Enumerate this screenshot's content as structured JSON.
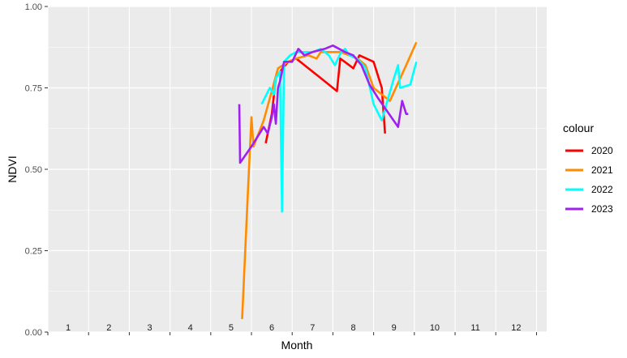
{
  "chart_data": {
    "type": "line",
    "xlabel": "Month",
    "ylabel": "NDVI",
    "xlim": [
      0.5,
      12.75
    ],
    "ylim": [
      0,
      1
    ],
    "y_ticks": [
      "0.00",
      "0.25",
      "0.50",
      "0.75",
      "1.00"
    ],
    "month_labels": [
      "1",
      "2",
      "3",
      "4",
      "5",
      "6",
      "7",
      "8",
      "9",
      "10",
      "11",
      "12"
    ],
    "grid": true,
    "legend_title": "colour",
    "legend_position": "right",
    "series": [
      {
        "name": "2020",
        "color": "#FF0000",
        "points": [
          [
            5.85,
            0.58
          ],
          [
            6.0,
            0.67
          ],
          [
            6.1,
            0.78
          ],
          [
            6.2,
            0.8
          ],
          [
            6.4,
            0.83
          ],
          [
            6.6,
            0.84
          ],
          [
            6.8,
            0.82
          ],
          [
            7.2,
            0.78
          ],
          [
            7.6,
            0.74
          ],
          [
            7.68,
            0.84
          ],
          [
            7.9,
            0.82
          ],
          [
            8.0,
            0.81
          ],
          [
            8.15,
            0.85
          ],
          [
            8.5,
            0.83
          ],
          [
            8.7,
            0.75
          ],
          [
            8.78,
            0.61
          ]
        ]
      },
      {
        "name": "2021",
        "color": "#FF8C00",
        "points": [
          [
            5.27,
            0.04
          ],
          [
            5.42,
            0.45
          ],
          [
            5.5,
            0.66
          ],
          [
            5.55,
            0.57
          ],
          [
            5.8,
            0.65
          ],
          [
            6.0,
            0.74
          ],
          [
            6.15,
            0.81
          ],
          [
            6.4,
            0.83
          ],
          [
            6.6,
            0.84
          ],
          [
            6.9,
            0.85
          ],
          [
            7.1,
            0.84
          ],
          [
            7.2,
            0.86
          ],
          [
            7.5,
            0.86
          ],
          [
            7.7,
            0.86
          ],
          [
            7.9,
            0.85
          ],
          [
            8.1,
            0.84
          ],
          [
            8.3,
            0.82
          ],
          [
            8.5,
            0.75
          ],
          [
            8.9,
            0.71
          ],
          [
            9.3,
            0.82
          ],
          [
            9.55,
            0.89
          ]
        ]
      },
      {
        "name": "2022",
        "color": "#00FFFF",
        "points": [
          [
            5.75,
            0.7
          ],
          [
            5.95,
            0.75
          ],
          [
            6.05,
            0.73
          ],
          [
            6.1,
            0.78
          ],
          [
            6.2,
            0.8
          ],
          [
            6.25,
            0.37
          ],
          [
            6.3,
            0.83
          ],
          [
            6.45,
            0.85
          ],
          [
            6.6,
            0.86
          ],
          [
            6.8,
            0.86
          ],
          [
            7.0,
            0.86
          ],
          [
            7.2,
            0.87
          ],
          [
            7.4,
            0.85
          ],
          [
            7.55,
            0.82
          ],
          [
            7.7,
            0.86
          ],
          [
            7.8,
            0.87
          ],
          [
            7.9,
            0.85
          ],
          [
            8.1,
            0.84
          ],
          [
            8.3,
            0.81
          ],
          [
            8.5,
            0.7
          ],
          [
            8.7,
            0.65
          ],
          [
            9.0,
            0.78
          ],
          [
            9.1,
            0.82
          ],
          [
            9.15,
            0.75
          ],
          [
            9.4,
            0.76
          ],
          [
            9.55,
            0.83
          ]
        ]
      },
      {
        "name": "2023",
        "color": "#A020F0",
        "points": [
          [
            5.2,
            0.7
          ],
          [
            5.22,
            0.52
          ],
          [
            5.5,
            0.57
          ],
          [
            5.8,
            0.63
          ],
          [
            5.9,
            0.61
          ],
          [
            6.0,
            0.66
          ],
          [
            6.05,
            0.7
          ],
          [
            6.1,
            0.64
          ],
          [
            6.15,
            0.75
          ],
          [
            6.2,
            0.77
          ],
          [
            6.3,
            0.83
          ],
          [
            6.5,
            0.83
          ],
          [
            6.65,
            0.87
          ],
          [
            6.8,
            0.85
          ],
          [
            7.0,
            0.86
          ],
          [
            7.3,
            0.87
          ],
          [
            7.5,
            0.88
          ],
          [
            7.8,
            0.86
          ],
          [
            8.0,
            0.85
          ],
          [
            8.2,
            0.82
          ],
          [
            8.4,
            0.76
          ],
          [
            8.6,
            0.72
          ],
          [
            9.1,
            0.63
          ],
          [
            9.2,
            0.71
          ],
          [
            9.3,
            0.67
          ],
          [
            9.35,
            0.67
          ]
        ]
      }
    ]
  }
}
